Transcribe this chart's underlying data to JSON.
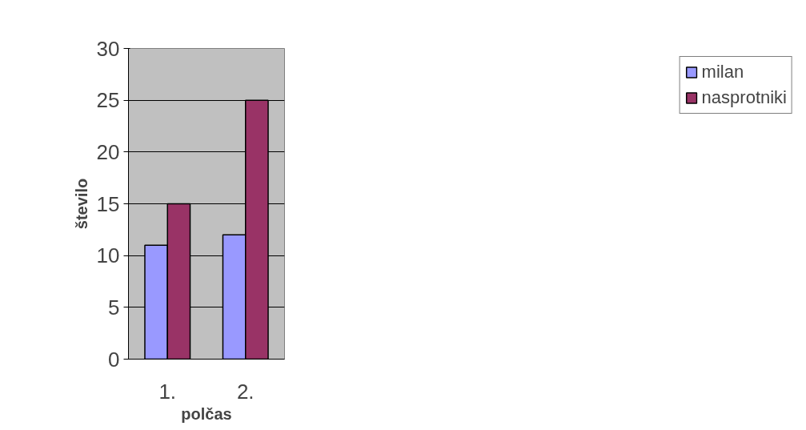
{
  "chart_data": {
    "type": "bar",
    "xlabel": "polčas",
    "ylabel": "število",
    "categories": [
      "1.",
      "2."
    ],
    "series": [
      {
        "name": "milan",
        "color": "#9999ff",
        "values": [
          11,
          12
        ]
      },
      {
        "name": "nasprotniki",
        "color": "#993366",
        "values": [
          15,
          25
        ]
      }
    ],
    "ylim": [
      0,
      30
    ],
    "yticks": [
      0,
      5,
      10,
      15,
      20,
      25,
      30
    ],
    "grid": "y",
    "legend": "right"
  }
}
